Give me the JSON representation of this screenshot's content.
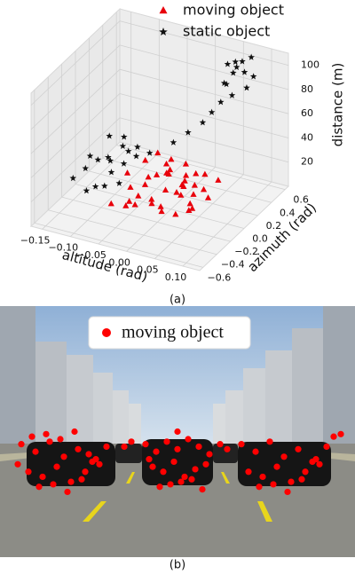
{
  "chart_data": [
    {
      "type": "scatter3d",
      "caption": "(a)",
      "x_label": "altitude (rad)",
      "y_label": "azimuth (rad)",
      "z_label": "distance (m)",
      "xlim": [
        -0.17,
        0.13
      ],
      "ylim": [
        -0.65,
        0.65
      ],
      "zlim": [
        0,
        110
      ],
      "xticks": [
        {
          "value": -0.15,
          "label": "−0.15"
        },
        {
          "value": -0.1,
          "label": "−0.10"
        },
        {
          "value": -0.05,
          "label": "−0.05"
        },
        {
          "value": 0,
          "label": "0.00"
        },
        0.05,
        {
          "value": 0.1,
          "label": "0.10"
        }
      ],
      "yticks": [
        {
          "value": -0.6,
          "label": "−0.6"
        },
        {
          "value": -0.4,
          "label": "−0.4"
        },
        {
          "value": -0.2,
          "label": "−0.2"
        },
        {
          "value": 0,
          "label": "0.0"
        },
        0.2,
        0.4,
        0.6
      ],
      "zticks": [
        20,
        40,
        60,
        80,
        100
      ],
      "grid": true,
      "series": [
        {
          "name": "moving object",
          "color": "#e8000b",
          "marker": "triangle",
          "x": [
            -0.07,
            -0.05,
            -0.03,
            -0.01,
            0.01,
            0.03,
            0.05,
            -0.06,
            -0.04,
            -0.02,
            0.0,
            0.02,
            0.04,
            0.06,
            -0.08,
            -0.05,
            -0.02,
            0.01,
            0.04,
            -0.07,
            -0.03,
            0.0,
            0.03,
            0.05,
            -0.06,
            -0.01,
            0.02,
            -0.04,
            0.01,
            0.04,
            -0.02,
            0.03,
            -0.05,
            0.0,
            0.02,
            -0.03,
            0.05,
            -0.01,
            0.01,
            -0.04
          ],
          "y": [
            -0.3,
            -0.25,
            -0.28,
            -0.2,
            -0.22,
            -0.18,
            -0.15,
            -0.1,
            -0.05,
            -0.12,
            -0.08,
            -0.02,
            0.0,
            0.05,
            0.02,
            0.08,
            0.1,
            0.12,
            0.15,
            0.2,
            0.18,
            0.22,
            0.25,
            0.28,
            0.3,
            0.05,
            0.02,
            -0.15,
            0.08,
            -0.05,
            0.15,
            0.1,
            -0.2,
            -0.15,
            0.2,
            0.25,
            -0.1,
            0.3,
            0.0,
            0.12
          ],
          "z": [
            12,
            10,
            15,
            14,
            11,
            9,
            13,
            16,
            18,
            12,
            20,
            15,
            17,
            14,
            19,
            16,
            22,
            18,
            13,
            21,
            24,
            16,
            19,
            15,
            23,
            25,
            20,
            14,
            17,
            12,
            22,
            18,
            11,
            10,
            21,
            24,
            12,
            20,
            15,
            17
          ]
        },
        {
          "name": "static object",
          "color": "#111111",
          "marker": "star",
          "x": [
            -0.15,
            -0.14,
            -0.13,
            -0.12,
            -0.11,
            -0.1,
            -0.09,
            -0.08,
            -0.14,
            -0.12,
            -0.1,
            -0.13,
            -0.11,
            -0.09,
            -0.15,
            -0.12,
            -0.1,
            -0.08,
            -0.05,
            -0.02,
            0.0,
            0.02,
            0.03,
            0.04,
            0.04,
            0.05,
            0.06,
            0.07,
            0.05,
            0.06,
            0.08,
            0.04,
            0.07,
            0.06,
            0.05,
            0.08
          ],
          "y": [
            -0.2,
            -0.1,
            0.0,
            0.1,
            0.2,
            -0.15,
            0.05,
            0.15,
            0.25,
            -0.25,
            -0.05,
            0.15,
            -0.2,
            0.25,
            0.05,
            0.3,
            0.2,
            -0.1,
            0.1,
            0.2,
            0.25,
            0.3,
            0.35,
            0.4,
            0.45,
            0.5,
            0.55,
            0.5,
            0.4,
            0.45,
            0.55,
            0.5,
            0.6,
            0.4,
            0.55,
            0.45
          ],
          "z": [
            18,
            22,
            25,
            20,
            28,
            15,
            24,
            26,
            30,
            14,
            21,
            19,
            16,
            27,
            23,
            29,
            25,
            17,
            35,
            42,
            50,
            58,
            65,
            72,
            85,
            92,
            100,
            95,
            88,
            105,
            90,
            98,
            102,
            80,
            94,
            86
          ]
        }
      ]
    },
    {
      "type": "scatter",
      "caption": "(b)",
      "xlim": [
        0,
        100
      ],
      "ylim": [
        0,
        100
      ],
      "series": [
        {
          "name": "moving object",
          "color": "#ff0000",
          "x": [
            6,
            10,
            14,
            18,
            22,
            26,
            30,
            8,
            12,
            16,
            20,
            24,
            28,
            11,
            15,
            19,
            23,
            27,
            9,
            13,
            17,
            21,
            25,
            5,
            41,
            44,
            47,
            50,
            53,
            56,
            59,
            43,
            46,
            49,
            52,
            55,
            58,
            45,
            48,
            51,
            54,
            57,
            42,
            50,
            68,
            72,
            76,
            80,
            84,
            88,
            92,
            70,
            74,
            78,
            82,
            86,
            90,
            73,
            77,
            81,
            85,
            89,
            94,
            96,
            35,
            37,
            62,
            64
          ],
          "y": [
            55,
            58,
            54,
            60,
            57,
            62,
            56,
            66,
            68,
            64,
            70,
            66,
            63,
            72,
            71,
            74,
            69,
            61,
            52,
            51,
            53,
            50,
            59,
            63,
            55,
            58,
            54,
            57,
            53,
            56,
            59,
            64,
            66,
            62,
            68,
            65,
            63,
            72,
            71,
            70,
            69,
            73,
            61,
            50,
            55,
            58,
            54,
            60,
            57,
            62,
            56,
            66,
            68,
            64,
            70,
            66,
            63,
            72,
            71,
            74,
            69,
            61,
            52,
            51,
            56,
            54,
            55,
            57
          ]
        }
      ]
    }
  ]
}
